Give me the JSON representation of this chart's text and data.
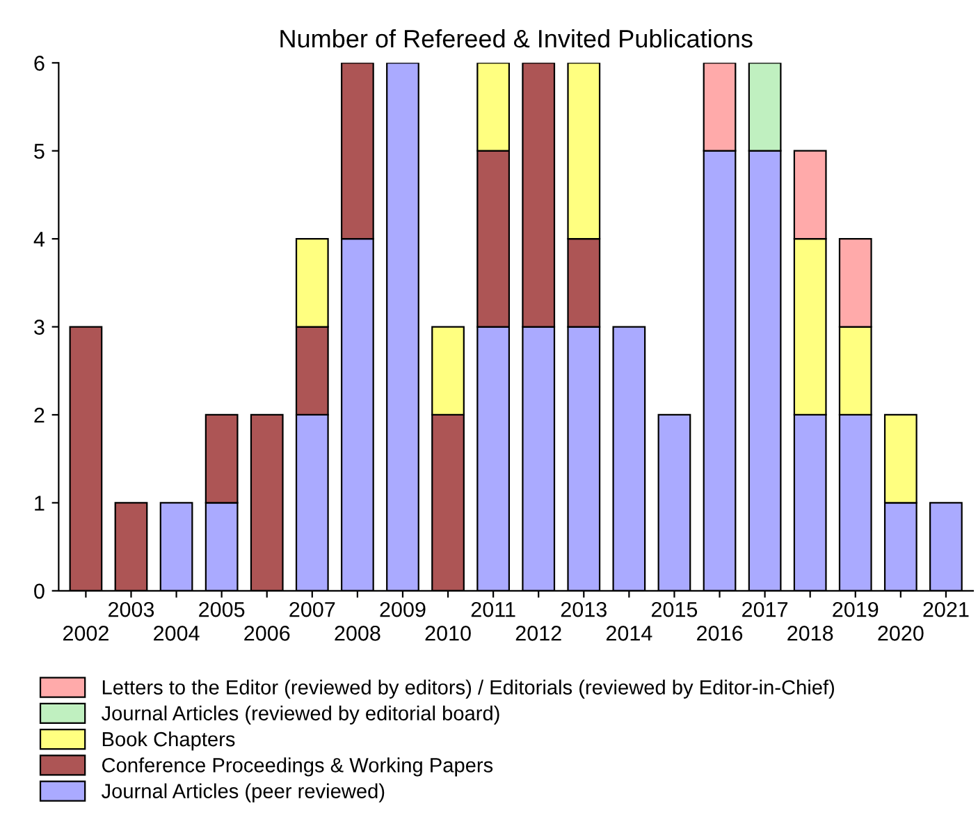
{
  "chart_data": {
    "type": "bar",
    "title": "Number of Refereed & Invited Publications",
    "stacked": true,
    "categories": [
      "2002",
      "2003",
      "2004",
      "2005",
      "2006",
      "2007",
      "2008",
      "2009",
      "2010",
      "2011",
      "2012",
      "2013",
      "2014",
      "2015",
      "2016",
      "2017",
      "2018",
      "2019",
      "2020",
      "2021"
    ],
    "series": [
      {
        "name": "Journal Articles (peer reviewed)",
        "color": "#aaaaff",
        "values": [
          null,
          null,
          1,
          1,
          null,
          2,
          4,
          6,
          null,
          3,
          3,
          3,
          3,
          2,
          5,
          5,
          2,
          2,
          1,
          1
        ]
      },
      {
        "name": "Conference Proceedings & Working Papers",
        "color": "#ad5555",
        "values": [
          3,
          1,
          null,
          1,
          2,
          1,
          2,
          null,
          2,
          2,
          3,
          1,
          null,
          null,
          null,
          null,
          null,
          null,
          null,
          null
        ]
      },
      {
        "name": "Book Chapters",
        "color": "#ffff80",
        "values": [
          null,
          null,
          null,
          null,
          null,
          1,
          null,
          null,
          1,
          1,
          null,
          2,
          null,
          null,
          null,
          null,
          2,
          1,
          1,
          null
        ]
      },
      {
        "name": "Journal Articles (reviewed by editorial board)",
        "color": "#c0f0c0",
        "values": [
          null,
          null,
          null,
          null,
          null,
          null,
          null,
          null,
          null,
          null,
          null,
          null,
          null,
          null,
          null,
          1,
          null,
          null,
          null,
          null
        ]
      },
      {
        "name": "Letters to the Editor (reviewed by editors) / Editorials (reviewed by Editor-in-Chief)",
        "color": "#ffaaaa",
        "values": [
          null,
          null,
          null,
          null,
          null,
          null,
          null,
          null,
          null,
          null,
          null,
          null,
          null,
          null,
          1,
          null,
          1,
          1,
          null,
          null
        ]
      }
    ],
    "ylim": [
      0,
      6
    ],
    "yticks": [
      0,
      1,
      2,
      3,
      4,
      5,
      6
    ],
    "grid": false,
    "legend": "bottom"
  }
}
